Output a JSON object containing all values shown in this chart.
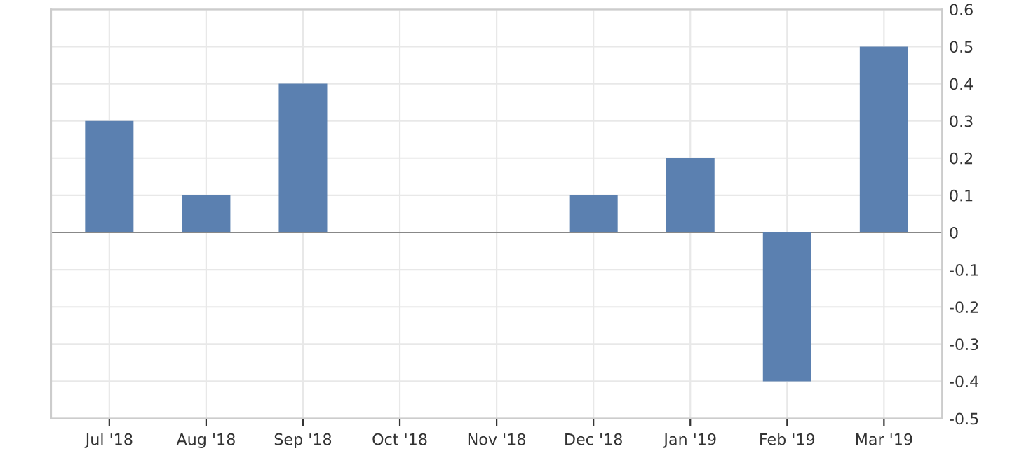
{
  "chart_data": {
    "type": "bar",
    "categories": [
      "Jul '18",
      "Aug '18",
      "Sep '18",
      "Oct '18",
      "Nov '18",
      "Dec '18",
      "Jan '19",
      "Feb '19",
      "Mar '19"
    ],
    "values": [
      0.3,
      0.1,
      0.4,
      0,
      0,
      0.1,
      0.2,
      -0.4,
      0.5
    ],
    "color": "#5b80b0",
    "ylim": [
      -0.5,
      0.6
    ],
    "yticks": [
      {
        "value": -0.5,
        "label": "-0.5"
      },
      {
        "value": -0.4,
        "label": "-0.4"
      },
      {
        "value": -0.3,
        "label": "-0.3"
      },
      {
        "value": -0.2,
        "label": "-0.2"
      },
      {
        "value": -0.1,
        "label": "-0.1"
      },
      0,
      0.1,
      0.2,
      0.3,
      0.4,
      0.5,
      0.6
    ],
    "grid": true
  }
}
